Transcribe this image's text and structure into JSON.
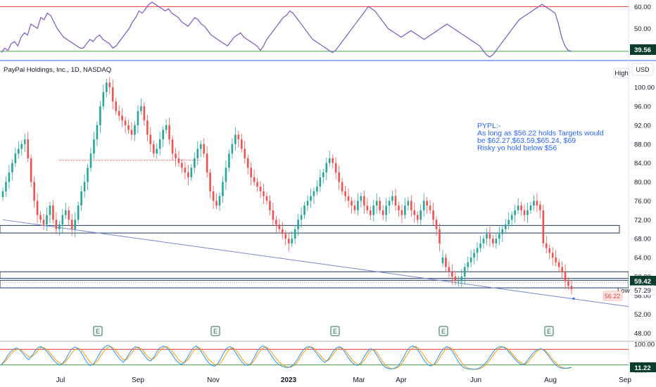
{
  "chart_title": "PayPal Holdings, Inc., 1D, NASDAQ",
  "currency_label": "USD",
  "high_label": "High",
  "low_label": "Low",
  "low_value": "57.29",
  "target_low_value": "56.22",
  "price_badge": "59.42",
  "rsi_badge": "39.56",
  "stoch_badge": "11.22",
  "earnings_marker": "E",
  "annotation": [
    "PYPL:-",
    "As long as $56.22 holds Targets would",
    "be $62.27,$63.59,$65.24, $69",
    "Risky yo hold below $56"
  ],
  "colors": {
    "up": "#26a69a",
    "down": "#ef5350",
    "rsi_line": "#7e57c2",
    "upper_band": "#e53935",
    "lower_band": "#43a047",
    "stoch_k": "#2196f3",
    "stoch_d": "#ff9800",
    "trendline": "#7986cb",
    "zone": "#1e3a5f",
    "price_badge": "#0b3d2e",
    "text": "#131722"
  },
  "chart_data": [
    {
      "type": "line",
      "panel": "rsi",
      "y_ticks": [
        "60.00",
        "50.00",
        "40.00"
      ],
      "y_range": [
        36,
        63
      ],
      "levels": [
        60,
        39.56
      ],
      "last_value": 39.56,
      "values": [
        39,
        41,
        40,
        43,
        44,
        42,
        46,
        48,
        47,
        52,
        51,
        50,
        55,
        54,
        57,
        56,
        53,
        50,
        48,
        46,
        45,
        44,
        43,
        42,
        41,
        41,
        43,
        45,
        44,
        46,
        47,
        45,
        44,
        43,
        41,
        42,
        44,
        46,
        48,
        50,
        53,
        55,
        58,
        57,
        59,
        61,
        62,
        61,
        60,
        59,
        58,
        59,
        57,
        56,
        55,
        53,
        52,
        51,
        53,
        55,
        54,
        52,
        51,
        49,
        47,
        46,
        45,
        44,
        43,
        42,
        44,
        46,
        47,
        48,
        46,
        45,
        44,
        43,
        42,
        40,
        42,
        45,
        47,
        49,
        51,
        53,
        55,
        56,
        58,
        57,
        55,
        53,
        51,
        49,
        47,
        45,
        44,
        43,
        42,
        41,
        40,
        39,
        40,
        42,
        44,
        46,
        48,
        50,
        52,
        54,
        56,
        58,
        60,
        59,
        58,
        56,
        54,
        52,
        50,
        49,
        48,
        47,
        46,
        47,
        48,
        49,
        48,
        47,
        46,
        45,
        46,
        47,
        48,
        49,
        50,
        51,
        52,
        51,
        50,
        49,
        48,
        47,
        46,
        45,
        44,
        43,
        42,
        40,
        38,
        37,
        38,
        40,
        42,
        44,
        46,
        48,
        50,
        52,
        54,
        55,
        56,
        57,
        58,
        59,
        60,
        61,
        60,
        59,
        58,
        57,
        52,
        46,
        42,
        40,
        39.56
      ]
    },
    {
      "type": "candlestick",
      "panel": "price",
      "y_ticks": [
        "100.00",
        "96.00",
        "92.00",
        "88.00",
        "84.00",
        "80.00",
        "76.00",
        "72.00",
        "68.00",
        "64.00",
        "60.00",
        "56.00",
        "52.00",
        "48.00"
      ],
      "y_range": [
        46.6,
        103
      ],
      "x_labels": [
        "Jul",
        "Sep",
        "Nov",
        "2023",
        "Mar",
        "Apr",
        "Jun",
        "Aug",
        "Sep"
      ],
      "closes": [
        78,
        80,
        82,
        84,
        86,
        87,
        88,
        89,
        85,
        80,
        76,
        73,
        72,
        71,
        73,
        75,
        72,
        70,
        71,
        73,
        74,
        72,
        70,
        72,
        75,
        78,
        80,
        83,
        86,
        89,
        92,
        96,
        99,
        101,
        100,
        97,
        95,
        94,
        93,
        92,
        91,
        90,
        92,
        95,
        96,
        93,
        90,
        88,
        86,
        87,
        89,
        91,
        92,
        89,
        86,
        85,
        84,
        83,
        82,
        81,
        83,
        85,
        87,
        88,
        86,
        82,
        78,
        76,
        75,
        77,
        80,
        83,
        86,
        88,
        90,
        89,
        87,
        85,
        83,
        81,
        80,
        79,
        78,
        77,
        76,
        74,
        72,
        71,
        70,
        69,
        68,
        67,
        68,
        70,
        72,
        73,
        75,
        76,
        77,
        78,
        79,
        81,
        82,
        84,
        85,
        84,
        82,
        80,
        78,
        77,
        76,
        75,
        74,
        76,
        77,
        75,
        74,
        73,
        75,
        76,
        74,
        73,
        75,
        76,
        77,
        75,
        74,
        73,
        75,
        76,
        74,
        73,
        72,
        74,
        76,
        75,
        74,
        72,
        70,
        67,
        64,
        62,
        61,
        60,
        59,
        59,
        60,
        62,
        63,
        64,
        65,
        66,
        67,
        68,
        69,
        68,
        67,
        68,
        69,
        70,
        71,
        72,
        73,
        74,
        75,
        74,
        73,
        74,
        75,
        76,
        75,
        74,
        67,
        66,
        65,
        64,
        63,
        62,
        61,
        59,
        58,
        57.29
      ],
      "gaps_after_index": [
        139,
        170
      ],
      "trendline": [
        [
          0,
          72
        ],
        [
          189,
          54.2
        ]
      ],
      "zones": [
        [
          69.2,
          70.8
        ],
        [
          57.6,
          59.2
        ],
        [
          59.6,
          61.0
        ]
      ],
      "resistance_line": 84.6,
      "last_close": 57.29,
      "target_low": 56.22
    },
    {
      "type": "line",
      "panel": "stochastic",
      "y_ticks": [
        "100.00",
        "0.00"
      ],
      "y_range": [
        -5,
        105
      ],
      "levels": [
        80,
        20
      ],
      "last_value": 11.22,
      "k_values": [
        20,
        35,
        55,
        70,
        80,
        85,
        78,
        65,
        50,
        40,
        55,
        72,
        86,
        90,
        82,
        70,
        55,
        40,
        28,
        20,
        25,
        40,
        62,
        80,
        88,
        85,
        70,
        50,
        30,
        18,
        20,
        38,
        60,
        78,
        90,
        95,
        88,
        72,
        55,
        40,
        30,
        45,
        65,
        82,
        90,
        85,
        70,
        55,
        40,
        35,
        50,
        70,
        85,
        92,
        88,
        76,
        60,
        42,
        30,
        22,
        30,
        48,
        70,
        86,
        92,
        80,
        62,
        44,
        28,
        18,
        15,
        25,
        45,
        68,
        84,
        90,
        82,
        64,
        46,
        30,
        20,
        18,
        28,
        50,
        74,
        88,
        92,
        84,
        66,
        48,
        32,
        22,
        15,
        12,
        10,
        14,
        24,
        40,
        60,
        78,
        88,
        90,
        84,
        70,
        54,
        40,
        30,
        38,
        56,
        74,
        86,
        90,
        80,
        62,
        44,
        30,
        20,
        18,
        30,
        52,
        70,
        82,
        78,
        60,
        40,
        22,
        10,
        6,
        5,
        8,
        15,
        30,
        52,
        74,
        88,
        92,
        86,
        70,
        50,
        32,
        20,
        16,
        24,
        44,
        66,
        82,
        90,
        85,
        70,
        50,
        30,
        15,
        8,
        5,
        4,
        3,
        5,
        10,
        18,
        30,
        46,
        64,
        80,
        88,
        90,
        86,
        76,
        62,
        48,
        35,
        25,
        20,
        28,
        44,
        60,
        72,
        80,
        82,
        76,
        62,
        46,
        30,
        18,
        10,
        8,
        7,
        9,
        11.22
      ],
      "d_values": [
        25,
        30,
        45,
        60,
        72,
        80,
        80,
        72,
        60,
        50,
        52,
        62,
        76,
        86,
        86,
        78,
        65,
        50,
        38,
        28,
        24,
        32,
        48,
        65,
        78,
        84,
        80,
        66,
        48,
        32,
        22,
        28,
        44,
        62,
        78,
        88,
        90,
        82,
        68,
        52,
        40,
        40,
        54,
        70,
        84,
        88,
        80,
        66,
        52,
        42,
        44,
        58,
        74,
        86,
        90,
        84,
        72,
        58,
        42,
        32,
        28,
        38,
        56,
        74,
        86,
        86,
        74,
        58,
        42,
        30,
        22,
        20,
        30,
        48,
        68,
        82,
        86,
        76,
        60,
        42,
        28,
        22,
        24,
        38,
        58,
        76,
        86,
        88,
        78,
        62,
        46,
        32,
        22,
        16,
        12,
        12,
        18,
        30,
        48,
        66,
        80,
        88,
        88,
        78,
        64,
        50,
        38,
        36,
        46,
        64,
        78,
        86,
        84,
        72,
        56,
        40,
        28,
        22,
        24,
        38,
        58,
        74,
        80,
        70,
        52,
        34,
        18,
        10,
        6,
        6,
        10,
        20,
        38,
        58,
        76,
        86,
        90,
        82,
        66,
        48,
        32,
        22,
        20,
        32,
        52,
        70,
        84,
        88,
        80,
        64,
        46,
        28,
        14,
        8,
        5,
        4,
        4,
        6,
        12,
        22,
        36,
        52,
        68,
        82,
        88,
        88,
        82,
        70,
        56,
        42,
        32,
        24,
        24,
        34,
        50,
        64,
        76,
        80,
        78,
        68,
        54,
        38,
        26,
        16,
        10,
        8,
        8,
        10
      ]
    }
  ]
}
